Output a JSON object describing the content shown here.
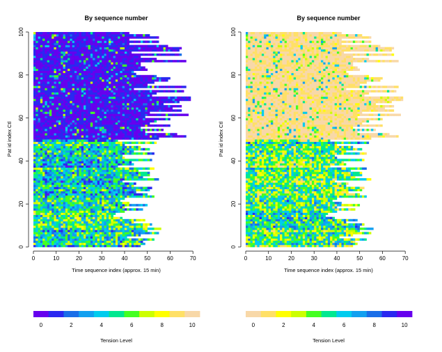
{
  "chart_data": [
    {
      "type": "heatmap",
      "title": "By sequence number",
      "xlabel": "Time sequence index (approx. 15 min)",
      "ylabel": "Pat    id index    Ctl",
      "xlim": [
        0,
        73
      ],
      "ylim": [
        0,
        100
      ],
      "xticks": [
        "0",
        "10",
        "20",
        "30",
        "40",
        "50",
        "60",
        "70"
      ],
      "yticks": [
        "0",
        "20",
        "40",
        "60",
        "80",
        "100"
      ],
      "colorbar": {
        "label": "Tension Level",
        "ticks": [
          "0",
          "2",
          "4",
          "6",
          "8",
          "10"
        ],
        "range": [
          0,
          10
        ],
        "colors": [
          "#6600ee",
          "#2a28f0",
          "#1a6ee8",
          "#12a0f0",
          "#00ccee",
          "#00e890",
          "#44ff22",
          "#ccff00",
          "#ffff00",
          "#ffe066",
          "#f8d8a8"
        ]
      },
      "groups": [
        {
          "name": "Ctl",
          "rows": [
            50,
            100
          ],
          "typical_level": 1.2
        },
        {
          "name": "Pat",
          "rows": [
            0,
            50
          ],
          "typical_level": 4.5
        }
      ]
    },
    {
      "type": "heatmap",
      "title": "By sequence number",
      "xlabel": "Time sequence index (approx. 15 min)",
      "ylabel": "Pat    id index    Ctl",
      "xlim": [
        0,
        73
      ],
      "ylim": [
        0,
        100
      ],
      "xticks": [
        "0",
        "10",
        "20",
        "30",
        "40",
        "50",
        "60",
        "70"
      ],
      "yticks": [
        "0",
        "20",
        "40",
        "60",
        "80",
        "100"
      ],
      "colorbar": {
        "label": "Tension Level",
        "ticks": [
          "0",
          "2",
          "4",
          "6",
          "8",
          "10"
        ],
        "range": [
          0,
          10
        ],
        "colors": [
          "#f8d8a8",
          "#ffe066",
          "#ffff00",
          "#ccff00",
          "#44ff22",
          "#00e890",
          "#00ccee",
          "#12a0f0",
          "#1a6ee8",
          "#2a28f0",
          "#6600ee"
        ]
      },
      "groups": [
        {
          "name": "Ctl",
          "rows": [
            50,
            100
          ],
          "typical_level": 1.2
        },
        {
          "name": "Pat",
          "rows": [
            0,
            50
          ],
          "typical_level": 4.5
        }
      ]
    }
  ]
}
